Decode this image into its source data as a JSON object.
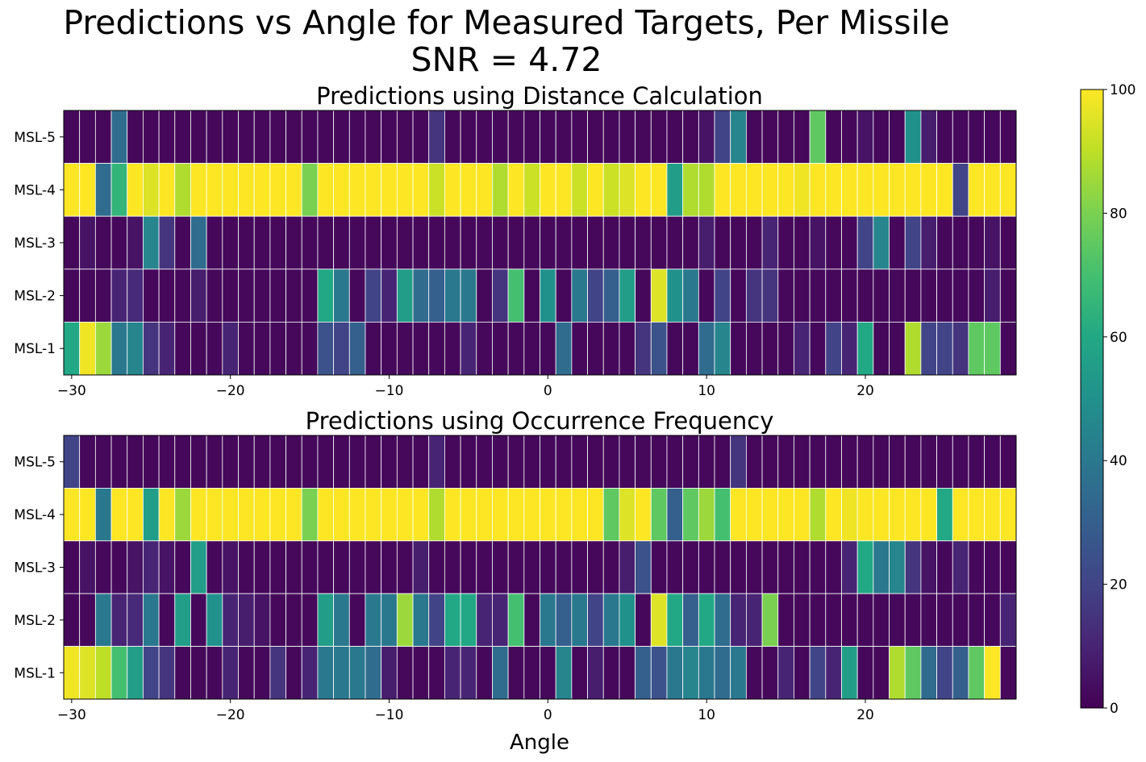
{
  "suptitle": {
    "line1": "Predictions vs Angle for Measured Targets, Per Missile",
    "line2": "SNR = 4.72"
  },
  "chart_data": [
    {
      "type": "heatmap",
      "title": "Predictions using Distance Calculation",
      "xlabel": "",
      "ylabel": "",
      "x_start": -30,
      "x_step": 1,
      "xlim": [
        -30.5,
        29.5
      ],
      "xticks": [
        -30,
        -20,
        -10,
        0,
        10,
        20
      ],
      "rows": [
        "MSL-5",
        "MSL-4",
        "MSL-3",
        "MSL-2",
        "MSL-1"
      ],
      "colormap": "viridis",
      "clim": [
        0,
        100
      ],
      "values": [
        [
          2,
          2,
          2,
          35,
          2,
          2,
          2,
          2,
          2,
          2,
          2,
          2,
          2,
          2,
          2,
          2,
          2,
          2,
          2,
          2,
          2,
          2,
          2,
          15,
          2,
          2,
          2,
          2,
          2,
          2,
          2,
          2,
          2,
          2,
          2,
          2,
          2,
          2,
          2,
          2,
          5,
          20,
          45,
          2,
          2,
          2,
          2,
          75,
          2,
          2,
          5,
          2,
          2,
          50,
          8,
          2,
          2,
          2,
          2,
          2
        ],
        [
          100,
          100,
          35,
          65,
          100,
          95,
          100,
          88,
          100,
          100,
          100,
          100,
          100,
          100,
          100,
          80,
          100,
          100,
          100,
          100,
          100,
          100,
          100,
          92,
          100,
          100,
          100,
          88,
          100,
          92,
          100,
          100,
          92,
          100,
          92,
          95,
          100,
          100,
          55,
          88,
          88,
          100,
          100,
          100,
          100,
          100,
          98,
          100,
          100,
          100,
          100,
          100,
          100,
          100,
          100,
          100,
          20,
          100,
          100,
          100
        ],
        [
          2,
          5,
          2,
          2,
          5,
          45,
          15,
          2,
          35,
          2,
          2,
          2,
          2,
          2,
          2,
          2,
          2,
          2,
          2,
          2,
          2,
          2,
          2,
          2,
          2,
          2,
          2,
          2,
          2,
          2,
          2,
          2,
          2,
          2,
          2,
          2,
          2,
          2,
          2,
          2,
          8,
          2,
          2,
          2,
          10,
          2,
          2,
          5,
          2,
          2,
          20,
          45,
          2,
          20,
          8,
          2,
          2,
          2,
          5,
          2
        ],
        [
          2,
          2,
          2,
          10,
          12,
          2,
          2,
          2,
          8,
          2,
          2,
          2,
          2,
          2,
          2,
          2,
          60,
          40,
          2,
          20,
          10,
          55,
          35,
          30,
          40,
          40,
          2,
          15,
          70,
          2,
          50,
          2,
          40,
          20,
          30,
          55,
          2,
          95,
          50,
          40,
          2,
          20,
          2,
          15,
          15,
          2,
          2,
          2,
          2,
          2,
          2,
          2,
          2,
          2,
          2,
          2,
          2,
          2,
          8,
          2
        ],
        [
          60,
          98,
          85,
          40,
          45,
          15,
          10,
          2,
          2,
          2,
          10,
          2,
          2,
          2,
          2,
          2,
          25,
          20,
          30,
          2,
          2,
          2,
          2,
          2,
          2,
          10,
          2,
          2,
          2,
          2,
          2,
          35,
          2,
          2,
          2,
          2,
          15,
          25,
          2,
          2,
          35,
          45,
          2,
          2,
          2,
          2,
          10,
          2,
          20,
          10,
          60,
          2,
          2,
          88,
          20,
          20,
          15,
          75,
          75,
          2
        ]
      ]
    },
    {
      "type": "heatmap",
      "title": "Predictions using Occurrence Frequency",
      "xlabel": "Angle",
      "ylabel": "",
      "x_start": -30,
      "x_step": 1,
      "xlim": [
        -30.5,
        29.5
      ],
      "xticks": [
        -30,
        -20,
        -10,
        0,
        10,
        20
      ],
      "rows": [
        "MSL-5",
        "MSL-4",
        "MSL-3",
        "MSL-2",
        "MSL-1"
      ],
      "colormap": "viridis",
      "clim": [
        0,
        100
      ],
      "values": [
        [
          20,
          2,
          2,
          2,
          2,
          2,
          2,
          2,
          2,
          2,
          2,
          2,
          2,
          2,
          2,
          2,
          2,
          2,
          2,
          2,
          2,
          2,
          2,
          10,
          2,
          2,
          2,
          2,
          2,
          2,
          2,
          2,
          2,
          2,
          2,
          2,
          2,
          2,
          2,
          2,
          2,
          2,
          15,
          2,
          2,
          2,
          2,
          2,
          2,
          2,
          2,
          2,
          2,
          2,
          2,
          2,
          2,
          2,
          2,
          2
        ],
        [
          100,
          100,
          40,
          100,
          100,
          55,
          100,
          85,
          100,
          100,
          100,
          100,
          100,
          100,
          100,
          80,
          100,
          100,
          100,
          100,
          100,
          100,
          100,
          88,
          100,
          100,
          100,
          100,
          100,
          100,
          100,
          100,
          100,
          100,
          75,
          95,
          100,
          75,
          30,
          75,
          85,
          70,
          100,
          100,
          100,
          100,
          100,
          88,
          100,
          98,
          100,
          100,
          100,
          100,
          100,
          60,
          100,
          100,
          100,
          100
        ],
        [
          2,
          5,
          2,
          2,
          5,
          10,
          5,
          2,
          55,
          2,
          5,
          2,
          2,
          2,
          2,
          2,
          2,
          2,
          2,
          2,
          2,
          2,
          8,
          2,
          2,
          2,
          2,
          2,
          2,
          2,
          2,
          2,
          2,
          2,
          2,
          8,
          25,
          2,
          2,
          2,
          2,
          2,
          2,
          2,
          2,
          2,
          2,
          2,
          2,
          10,
          60,
          40,
          45,
          15,
          5,
          2,
          10,
          2,
          2,
          2
        ],
        [
          2,
          2,
          40,
          10,
          12,
          40,
          2,
          55,
          2,
          50,
          10,
          8,
          5,
          2,
          2,
          2,
          55,
          40,
          2,
          40,
          40,
          85,
          40,
          20,
          60,
          60,
          10,
          10,
          70,
          2,
          40,
          30,
          40,
          20,
          40,
          50,
          2,
          95,
          60,
          30,
          60,
          35,
          10,
          10,
          80,
          2,
          2,
          2,
          2,
          2,
          2,
          2,
          2,
          2,
          2,
          2,
          2,
          2,
          2,
          10
        ],
        [
          98,
          95,
          90,
          70,
          55,
          20,
          15,
          2,
          2,
          2,
          10,
          2,
          2,
          15,
          2,
          10,
          40,
          40,
          40,
          35,
          8,
          2,
          2,
          2,
          10,
          10,
          2,
          35,
          2,
          2,
          2,
          45,
          2,
          8,
          2,
          2,
          30,
          25,
          40,
          45,
          40,
          35,
          40,
          2,
          2,
          10,
          2,
          20,
          10,
          55,
          2,
          2,
          88,
          75,
          35,
          20,
          30,
          75,
          100,
          2
        ]
      ]
    }
  ],
  "colorbar": {
    "ticks": [
      0,
      20,
      40,
      60,
      80,
      100
    ]
  }
}
